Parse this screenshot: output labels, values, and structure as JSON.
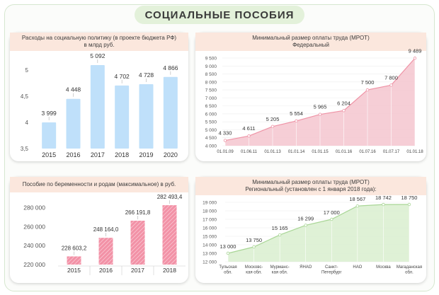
{
  "page_title": "СОЦИАЛЬНЫЕ ПОСОБИЯ",
  "chart_data": [
    {
      "id": "social-spending",
      "type": "bar",
      "title_lines": [
        "Расходы на социальную политику (в проекте бюджета РФ)",
        "в млрд руб."
      ],
      "categories": [
        "2015",
        "2016",
        "2017",
        "2018",
        "2019",
        "2020"
      ],
      "values": [
        3999,
        4448,
        5092,
        4702,
        4728,
        4866
      ],
      "value_labels": [
        "3 999",
        "4 448",
        "5 092",
        "4 702",
        "4 728",
        "4 866"
      ],
      "y_ticks": [
        "5",
        "4,5",
        "4",
        "3,5"
      ],
      "ylim": [
        3500,
        5200
      ],
      "color": "#bfe0fa"
    },
    {
      "id": "mrot-federal",
      "type": "area",
      "title_lines": [
        "Минимальный размер оплаты труда (МРОТ)",
        "Федеральный"
      ],
      "categories": [
        "01.01.09",
        "01.06.11",
        "01.01.13",
        "01.01.14",
        "01.01.15",
        "01.01.16",
        "01.07.16",
        "01.07.17",
        "01.01.18"
      ],
      "values": [
        4330,
        4611,
        5205,
        5554,
        5965,
        6204,
        7500,
        7800,
        9489
      ],
      "value_labels": [
        "4 330",
        "4 611",
        "5 205",
        "5 554",
        "5 965",
        "6 204",
        "7 500",
        "7 800",
        "9 489"
      ],
      "y_ticks": [
        "9 500",
        "9 000",
        "8 500",
        "8 000",
        "7 500",
        "7 000",
        "6 500",
        "6 000",
        "5 500",
        "5 000",
        "4 500",
        "4 000"
      ],
      "ylim": [
        4000,
        9500
      ],
      "color": "#f4c6cf"
    },
    {
      "id": "maternity-benefit",
      "type": "bar",
      "title_lines": [
        "Пособие по беременности и родам (максимальное) в руб."
      ],
      "categories": [
        "2015",
        "2016",
        "2017",
        "2018"
      ],
      "values": [
        228603.2,
        248164.0,
        266191.8,
        282493.4
      ],
      "value_labels": [
        "228 603,2",
        "248 164,0",
        "266 191,8",
        "282 493,4"
      ],
      "y_ticks": [
        "280 000",
        "260 000",
        "240 000",
        "220 000"
      ],
      "ylim": [
        220000,
        290000
      ],
      "color": "#f291a6"
    },
    {
      "id": "mrot-regional",
      "type": "area",
      "title_lines": [
        "Минимальный размер оплаты труда (МРОТ)",
        "Региональный (установлен с 1 января 2018 года):"
      ],
      "categories": [
        [
          "Тульская",
          "обл."
        ],
        [
          "Московс-",
          "кая обл."
        ],
        [
          "Мурманс-",
          "кая обл."
        ],
        [
          "ЯНАО"
        ],
        [
          "Санкт-",
          "Петербург"
        ],
        [
          "НАО"
        ],
        [
          "Москва"
        ],
        [
          "Магаданская",
          "обл."
        ]
      ],
      "values": [
        13000,
        13750,
        15165,
        16299,
        17000,
        18567,
        18742,
        18750
      ],
      "value_labels": [
        "13 000",
        "13 750",
        "15 165",
        "16 299",
        "17 000",
        "18 567",
        "18 742",
        "18 750"
      ],
      "y_ticks": [
        "19 000",
        "18 000",
        "17 000",
        "16 000",
        "15 000",
        "14 000",
        "13 000",
        "12 000"
      ],
      "ylim": [
        12000,
        19000
      ],
      "color": "#dcefd2"
    }
  ]
}
